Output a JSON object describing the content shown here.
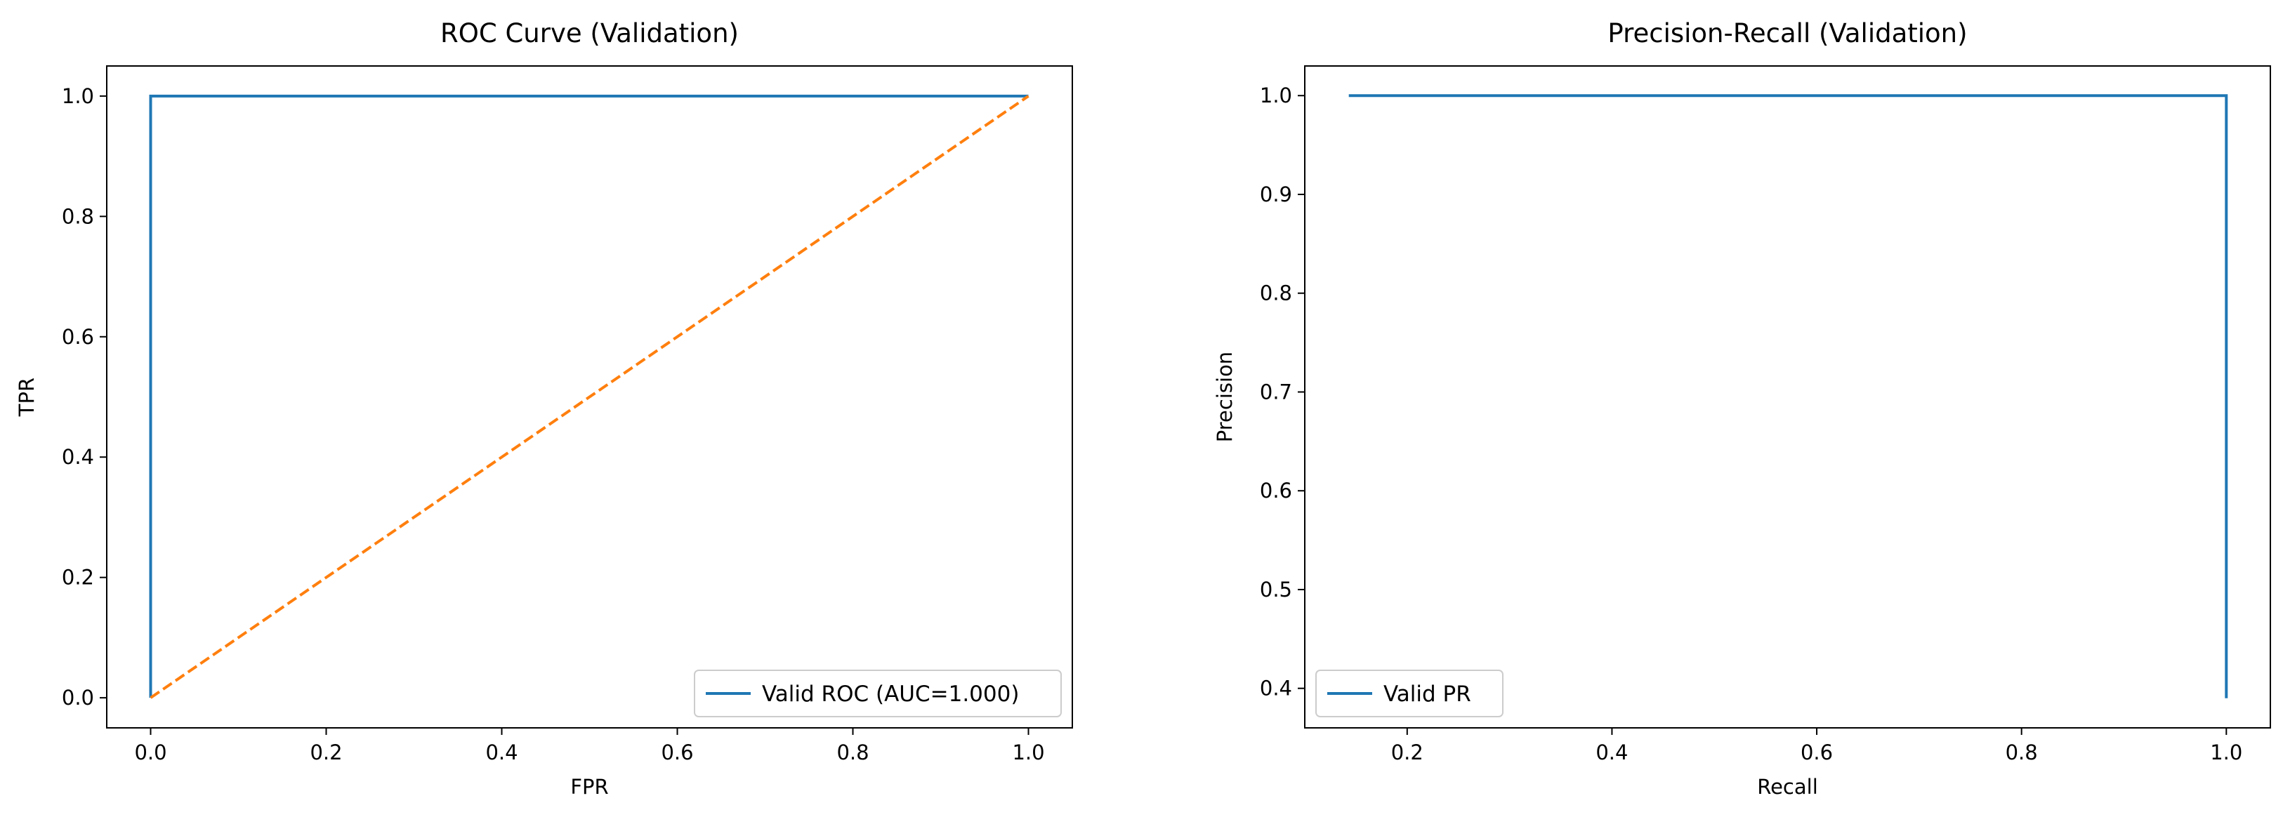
{
  "chart_data": [
    {
      "type": "line",
      "title": "ROC Curve (Validation)",
      "xlabel": "FPR",
      "ylabel": "TPR",
      "xlim": [
        -0.05,
        1.05
      ],
      "ylim": [
        -0.05,
        1.05
      ],
      "xticks": [
        0.0,
        0.2,
        0.4,
        0.6,
        0.8,
        1.0
      ],
      "xtick_labels": [
        "0.0",
        "0.2",
        "0.4",
        "0.6",
        "0.8",
        "1.0"
      ],
      "yticks": [
        0.0,
        0.2,
        0.4,
        0.6,
        0.8,
        1.0
      ],
      "ytick_labels": [
        "0.0",
        "0.2",
        "0.4",
        "0.6",
        "0.8",
        "1.0"
      ],
      "grid": false,
      "legend_position": "lower-right",
      "series": [
        {
          "name": "Valid ROC (AUC=1.000)",
          "color": "#1f77b4",
          "style": "solid",
          "x": [
            0.0,
            0.0,
            1.0
          ],
          "y": [
            0.0,
            1.0,
            1.0
          ]
        },
        {
          "color": "#ff7f0e",
          "style": "dashed",
          "x": [
            0.0,
            1.0
          ],
          "y": [
            0.0,
            1.0
          ]
        }
      ]
    },
    {
      "type": "line",
      "title": "Precision-Recall (Validation)",
      "xlabel": "Recall",
      "ylabel": "Precision",
      "xlim": [
        0.1,
        1.043
      ],
      "ylim": [
        0.36,
        1.03
      ],
      "xticks": [
        0.2,
        0.4,
        0.6,
        0.8,
        1.0
      ],
      "xtick_labels": [
        "0.2",
        "0.4",
        "0.6",
        "0.8",
        "1.0"
      ],
      "yticks": [
        0.4,
        0.5,
        0.6,
        0.7,
        0.8,
        0.9,
        1.0
      ],
      "ytick_labels": [
        "0.4",
        "0.5",
        "0.6",
        "0.7",
        "0.8",
        "0.9",
        "1.0"
      ],
      "grid": false,
      "legend_position": "lower-left",
      "series": [
        {
          "name": "Valid PR",
          "color": "#1f77b4",
          "style": "solid",
          "x": [
            0.143,
            1.0,
            1.0
          ],
          "y": [
            1.0,
            1.0,
            0.39
          ]
        }
      ]
    }
  ]
}
